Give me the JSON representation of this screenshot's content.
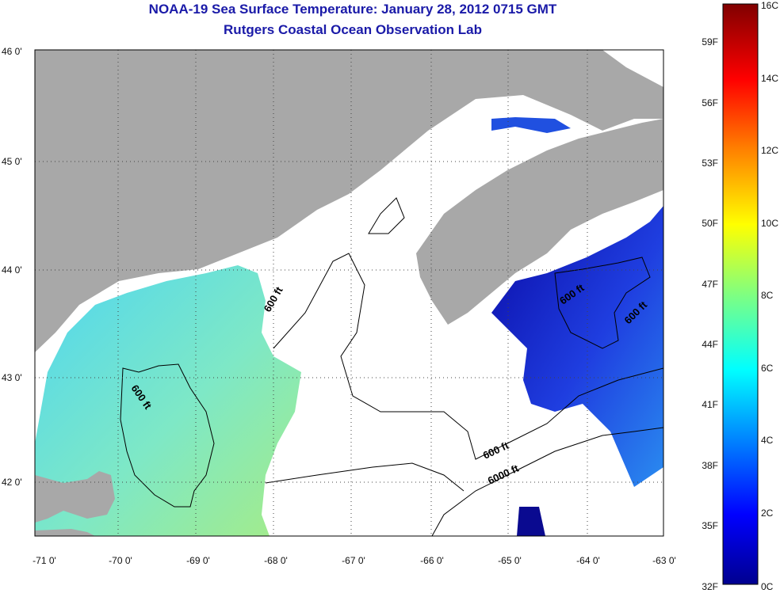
{
  "title": {
    "line1": "NOAA-19 Sea Surface Temperature:  January 28, 2012 0715 GMT",
    "line2": "Rutgers Coastal Ocean Observation Lab"
  },
  "map": {
    "lat_ticks": [
      {
        "lat": 46,
        "label": "46 0'"
      },
      {
        "lat": 45,
        "label": "45 0'"
      },
      {
        "lat": 44,
        "label": "44 0'"
      },
      {
        "lat": 43,
        "label": "43 0'"
      },
      {
        "lat": 42,
        "label": "42 0'"
      }
    ],
    "lon_ticks": [
      {
        "lon": -71,
        "label": "-71 0'"
      },
      {
        "lon": -70,
        "label": "-70 0'"
      },
      {
        "lon": -69,
        "label": "-69 0'"
      },
      {
        "lon": -68,
        "label": "-68 0'"
      },
      {
        "lon": -67,
        "label": "-67 0'"
      },
      {
        "lon": -66,
        "label": "-66 0'"
      },
      {
        "lon": -65,
        "label": "-65 0'"
      },
      {
        "lon": -64,
        "label": "-64 0'"
      },
      {
        "lon": -63,
        "label": "-63 0'"
      }
    ],
    "contour_labels": [
      "600 ft",
      "600 ft",
      "600 ft",
      "600 ft",
      "600 ft",
      "6000 ft"
    ],
    "colors": {
      "land": "#a8a8a8",
      "cloud": "#ffffff",
      "warm_water": "#8fe6c8",
      "cold_water": "#1a1ac8"
    }
  },
  "colorbar": {
    "celsius": [
      "16C",
      "14C",
      "12C",
      "10C",
      "8C",
      "6C",
      "4C",
      "2C",
      "0C"
    ],
    "fahrenheit": [
      "59F",
      "56F",
      "53F",
      "50F",
      "47F",
      "44F",
      "41F",
      "38F",
      "35F",
      "32F"
    ],
    "colors": [
      "#00008f",
      "#0000ff",
      "#0080ff",
      "#00ffff",
      "#80ff80",
      "#ffff00",
      "#ff8000",
      "#ff0000",
      "#800000"
    ]
  }
}
